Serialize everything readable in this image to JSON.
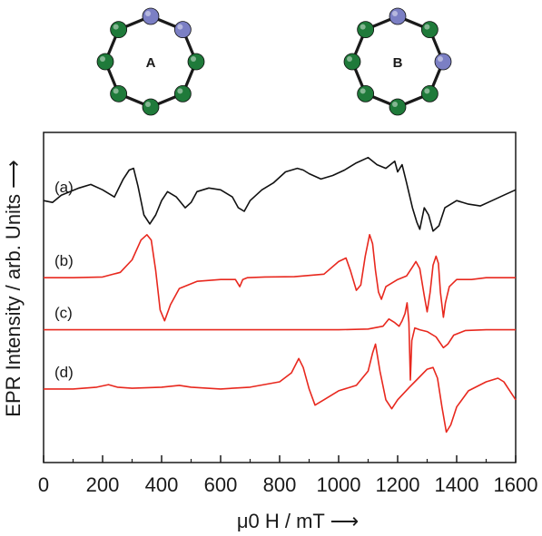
{
  "colors": {
    "trace_a": "#111111",
    "traces_sim": "#e8281e",
    "green_sphere": "#1f7a3a",
    "blue_sphere": "#7b7fc4"
  },
  "rings": [
    {
      "label": "A",
      "sphere_colors": [
        "blue",
        "blue",
        "green",
        "green",
        "green",
        "green",
        "green",
        "green"
      ]
    },
    {
      "label": "B",
      "sphere_colors": [
        "blue",
        "green",
        "blue",
        "green",
        "green",
        "green",
        "green",
        "green"
      ]
    }
  ],
  "chart_data": {
    "type": "line",
    "title": "",
    "xlabel": "μ0 H / mT ⟶",
    "ylabel": "EPR Intensity / arb. Units ⟶",
    "xlim": [
      0,
      1600
    ],
    "x_ticks": [
      0,
      200,
      400,
      600,
      800,
      1000,
      1200,
      1400,
      1600
    ],
    "y_ticks": [],
    "grid": false,
    "series": [
      {
        "name": "(a)",
        "color": "#111111",
        "offset": 4.0,
        "x": [
          0,
          30,
          60,
          90,
          120,
          160,
          200,
          240,
          270,
          290,
          305,
          320,
          340,
          360,
          380,
          400,
          420,
          450,
          480,
          500,
          520,
          560,
          600,
          640,
          660,
          680,
          700,
          740,
          780,
          820,
          860,
          880,
          900,
          940,
          980,
          1020,
          1060,
          1100,
          1130,
          1160,
          1190,
          1200,
          1215,
          1230,
          1250,
          1265,
          1275,
          1290,
          1305,
          1320,
          1340,
          1360,
          1400,
          1440,
          1480,
          1520,
          1560,
          1600
        ],
        "y": [
          0.1,
          0.05,
          0.25,
          0.35,
          0.45,
          0.55,
          0.4,
          0.2,
          0.7,
          0.95,
          1.0,
          0.5,
          -0.3,
          -0.55,
          -0.3,
          0.1,
          0.35,
          0.2,
          -0.1,
          0.05,
          0.35,
          0.45,
          0.4,
          0.2,
          -0.1,
          -0.2,
          0.1,
          0.4,
          0.6,
          0.9,
          1.0,
          0.95,
          0.85,
          0.7,
          0.8,
          0.95,
          1.15,
          1.3,
          1.1,
          1.0,
          1.2,
          0.9,
          1.1,
          0.6,
          -0.1,
          -0.5,
          -0.7,
          -0.1,
          -0.3,
          -0.75,
          -0.6,
          -0.1,
          0.1,
          0.0,
          -0.05,
          0.1,
          0.25,
          0.4
        ]
      },
      {
        "name": "(b)",
        "color": "#e8281e",
        "offset": 1.95,
        "x": [
          0,
          100,
          200,
          260,
          300,
          330,
          350,
          365,
          380,
          395,
          410,
          430,
          460,
          520,
          600,
          650,
          665,
          675,
          690,
          750,
          850,
          950,
          1000,
          1025,
          1040,
          1060,
          1075,
          1090,
          1105,
          1115,
          1125,
          1135,
          1145,
          1160,
          1200,
          1230,
          1250,
          1262,
          1275,
          1290,
          1300,
          1310,
          1320,
          1330,
          1338,
          1345,
          1355,
          1362,
          1375,
          1400,
          1450,
          1500,
          1560,
          1600
        ],
        "y": [
          0,
          0,
          0.02,
          0.15,
          0.5,
          1.05,
          1.2,
          1.05,
          0.2,
          -0.9,
          -1.2,
          -0.75,
          -0.3,
          -0.1,
          -0.05,
          -0.05,
          -0.25,
          -0.05,
          0,
          0.02,
          0.03,
          0.1,
          0.45,
          0.55,
          0.2,
          -0.35,
          -0.2,
          0.6,
          1.2,
          0.95,
          0.2,
          -0.4,
          -0.6,
          -0.25,
          -0.05,
          0.05,
          0.3,
          0.45,
          0.25,
          -0.5,
          -0.95,
          -0.4,
          0.35,
          0.6,
          0.4,
          -0.4,
          -1.1,
          -0.7,
          -0.25,
          -0.05,
          -0.05,
          0,
          0,
          0
        ]
      },
      {
        "name": "(c)",
        "color": "#e8281e",
        "offset": 0.5,
        "x": [
          0,
          200,
          400,
          600,
          800,
          1000,
          1100,
          1150,
          1170,
          1190,
          1205,
          1215,
          1225,
          1232,
          1238,
          1243,
          1248,
          1258,
          1275,
          1300,
          1330,
          1355,
          1370,
          1390,
          1430,
          1500,
          1600
        ],
        "y": [
          0,
          0,
          0,
          0,
          0,
          0,
          0.02,
          0.1,
          0.3,
          0.2,
          0.1,
          0.25,
          0.45,
          0.75,
          0.2,
          -1.4,
          -0.3,
          0.05,
          0,
          -0.05,
          -0.2,
          -0.5,
          -0.4,
          -0.15,
          -0.02,
          0,
          0
        ]
      },
      {
        "name": "(d)",
        "color": "#e8281e",
        "offset": -1.15,
        "x": [
          0,
          100,
          180,
          220,
          250,
          300,
          400,
          460,
          500,
          600,
          700,
          800,
          840,
          865,
          880,
          900,
          920,
          950,
          1000,
          1060,
          1100,
          1115,
          1125,
          1140,
          1160,
          1180,
          1200,
          1240,
          1270,
          1300,
          1320,
          1335,
          1350,
          1365,
          1380,
          1400,
          1440,
          1500,
          1540,
          1560,
          1580,
          1600
        ],
        "y": [
          0,
          0,
          0.05,
          0.12,
          0.05,
          0.02,
          0.05,
          0.1,
          0.05,
          0,
          0.05,
          0.2,
          0.45,
          0.85,
          0.6,
          0.0,
          -0.45,
          -0.3,
          -0.05,
          0.1,
          0.5,
          1.0,
          1.25,
          0.5,
          -0.3,
          -0.55,
          -0.3,
          0.05,
          0.3,
          0.55,
          0.6,
          0.3,
          -0.5,
          -1.2,
          -1.0,
          -0.5,
          -0.05,
          0.2,
          0.3,
          0.2,
          -0.05,
          -0.3
        ]
      }
    ]
  }
}
